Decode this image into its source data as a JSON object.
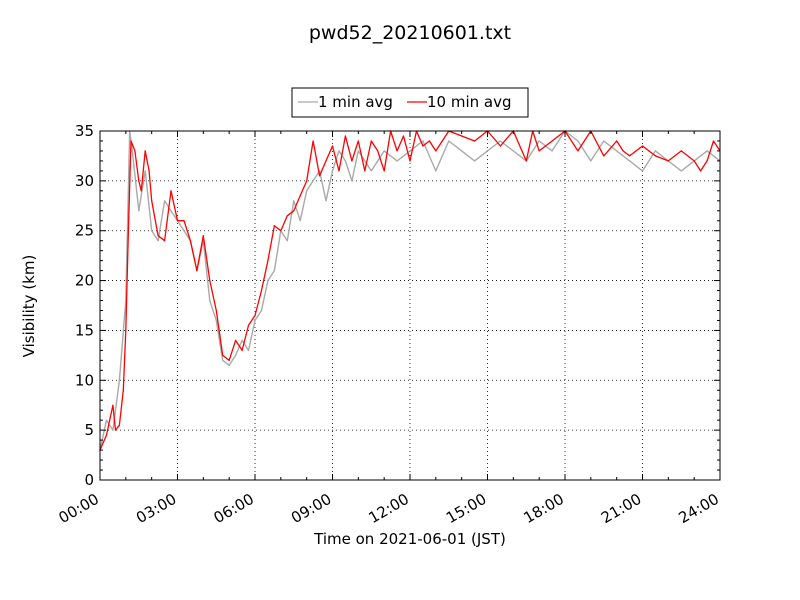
{
  "chart_data": {
    "type": "line",
    "title": "pwd52_20210601.txt",
    "xlabel": "Time on 2021-06-01 (JST)",
    "ylabel": "Visibility (km)",
    "xlim_hours": [
      0,
      24
    ],
    "ylim": [
      0,
      35
    ],
    "x_tick_labels": [
      "00:00",
      "03:00",
      "06:00",
      "09:00",
      "12:00",
      "15:00",
      "18:00",
      "21:00",
      "24:00"
    ],
    "y_tick_labels": [
      "0",
      "5",
      "10",
      "15",
      "20",
      "25",
      "30",
      "35"
    ],
    "grid": true,
    "legend_position": "top-center",
    "series": [
      {
        "name": "1 min avg",
        "color": "#a9a9a9",
        "x_hours": [
          0.0,
          0.25,
          0.5,
          0.75,
          1.0,
          1.15,
          1.25,
          1.5,
          1.75,
          2.0,
          2.25,
          2.5,
          2.75,
          3.0,
          3.25,
          3.5,
          3.75,
          4.0,
          4.25,
          4.5,
          4.75,
          5.0,
          5.25,
          5.5,
          5.75,
          6.0,
          6.25,
          6.5,
          6.75,
          7.0,
          7.25,
          7.5,
          7.75,
          8.0,
          8.25,
          8.5,
          8.75,
          9.0,
          9.25,
          9.5,
          9.75,
          10.0,
          10.5,
          11.0,
          11.5,
          12.0,
          12.5,
          13.0,
          13.5,
          14.0,
          14.5,
          15.0,
          15.5,
          16.0,
          16.5,
          17.0,
          17.5,
          18.0,
          18.5,
          19.0,
          19.5,
          20.0,
          20.5,
          21.0,
          21.5,
          22.0,
          22.5,
          23.0,
          23.5,
          24.0
        ],
        "values": [
          3.0,
          6.0,
          5.0,
          10.0,
          18.0,
          35.0,
          33.0,
          27.0,
          31.0,
          25.0,
          24.0,
          28.0,
          27.0,
          26.0,
          25.0,
          24.0,
          21.0,
          24.0,
          18.0,
          16.0,
          12.0,
          11.5,
          12.5,
          14.0,
          13.0,
          16.0,
          17.0,
          20.0,
          21.0,
          25.0,
          24.0,
          28.0,
          26.0,
          29.0,
          30.0,
          31.0,
          28.0,
          31.0,
          33.0,
          32.0,
          30.0,
          33.0,
          31.0,
          33.0,
          32.0,
          33.0,
          34.0,
          31.0,
          34.0,
          33.0,
          32.0,
          33.0,
          34.0,
          33.0,
          32.0,
          34.0,
          33.0,
          35.0,
          34.0,
          32.0,
          34.0,
          33.0,
          32.0,
          31.0,
          33.0,
          32.0,
          31.0,
          32.0,
          33.0,
          32.0
        ]
      },
      {
        "name": "10 min avg",
        "color": "#ff0000",
        "x_hours": [
          0.0,
          0.25,
          0.5,
          0.6,
          0.75,
          0.9,
          1.0,
          1.1,
          1.2,
          1.35,
          1.5,
          1.6,
          1.75,
          1.9,
          2.0,
          2.25,
          2.5,
          2.75,
          3.0,
          3.25,
          3.5,
          3.75,
          4.0,
          4.25,
          4.5,
          4.75,
          5.0,
          5.25,
          5.5,
          5.75,
          6.0,
          6.25,
          6.5,
          6.75,
          7.0,
          7.25,
          7.5,
          7.75,
          8.0,
          8.25,
          8.5,
          8.75,
          9.0,
          9.25,
          9.5,
          9.75,
          10.0,
          10.25,
          10.5,
          10.75,
          11.0,
          11.25,
          11.5,
          11.75,
          12.0,
          12.25,
          12.5,
          12.75,
          13.0,
          13.5,
          14.0,
          14.5,
          15.0,
          15.5,
          16.0,
          16.5,
          16.75,
          17.0,
          17.5,
          18.0,
          18.5,
          19.0,
          19.5,
          20.0,
          20.25,
          20.5,
          21.0,
          21.5,
          22.0,
          22.5,
          23.0,
          23.25,
          23.5,
          23.75,
          24.0
        ],
        "values": [
          3.0,
          4.5,
          7.5,
          5.0,
          5.5,
          9.0,
          15.0,
          25.0,
          34.0,
          33.0,
          30.0,
          29.0,
          33.0,
          31.0,
          28.0,
          24.5,
          24.0,
          29.0,
          26.0,
          26.0,
          24.0,
          21.0,
          24.5,
          20.0,
          17.0,
          12.5,
          12.0,
          14.0,
          13.0,
          15.5,
          16.5,
          19.0,
          22.0,
          25.5,
          25.0,
          26.5,
          27.0,
          28.5,
          30.0,
          34.0,
          30.5,
          32.0,
          33.5,
          31.0,
          34.5,
          32.0,
          34.0,
          31.0,
          34.0,
          33.0,
          31.0,
          35.0,
          33.0,
          34.5,
          32.0,
          35.0,
          33.5,
          34.0,
          33.0,
          35.0,
          34.5,
          34.0,
          35.0,
          33.5,
          35.0,
          32.0,
          35.0,
          33.0,
          34.0,
          35.0,
          33.0,
          35.0,
          32.5,
          34.0,
          33.0,
          32.5,
          33.5,
          32.5,
          32.0,
          33.0,
          32.0,
          31.0,
          32.0,
          34.0,
          33.0
        ]
      }
    ]
  }
}
